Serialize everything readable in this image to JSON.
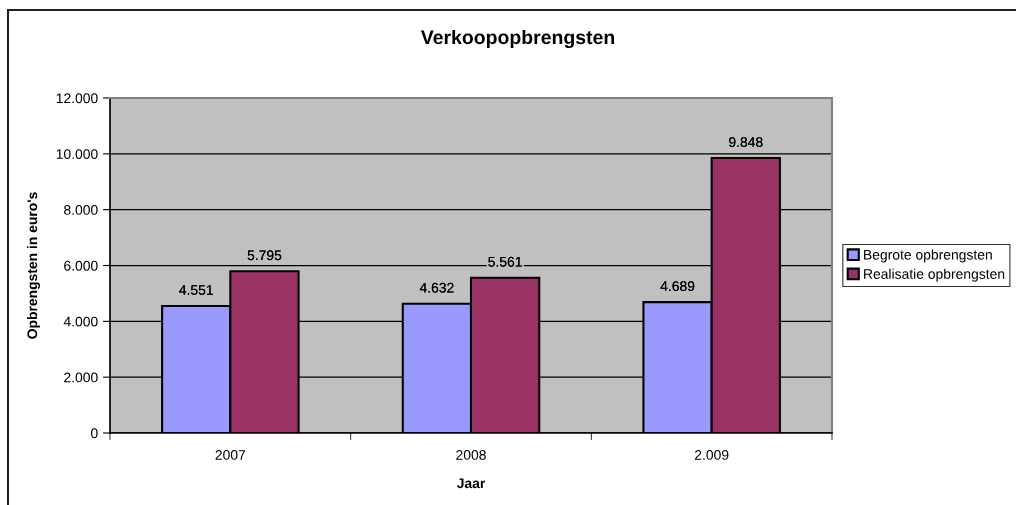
{
  "chart_data": {
    "type": "bar",
    "title": "Verkoopopbrengsten",
    "xlabel": "Jaar",
    "ylabel": "Opbrengsten in euro's",
    "categories": [
      "2007",
      "2008",
      "2.009"
    ],
    "series": [
      {
        "name": "Begrote opbrengsten",
        "color": "#9999ff",
        "values": [
          4551,
          4632,
          4689
        ],
        "value_labels": [
          "4.551",
          "4.632",
          "4.689"
        ]
      },
      {
        "name": "Realisatie opbrengsten",
        "color": "#993366",
        "values": [
          5795,
          5561,
          9848
        ],
        "value_labels": [
          "5.795",
          "5.561",
          "9.848"
        ]
      }
    ],
    "ylim": [
      0,
      12000
    ],
    "yticks": [
      0,
      {
        "value": 2000,
        "label": "2.000"
      },
      {
        "value": 4000,
        "label": "4.000"
      },
      {
        "value": 6000,
        "label": "6.000"
      },
      {
        "value": 8000,
        "label": "8.000"
      },
      {
        "value": 10000,
        "label": "10.000"
      },
      {
        "value": 12000,
        "label": "12.000"
      }
    ],
    "grid": "y",
    "legend": "right"
  }
}
